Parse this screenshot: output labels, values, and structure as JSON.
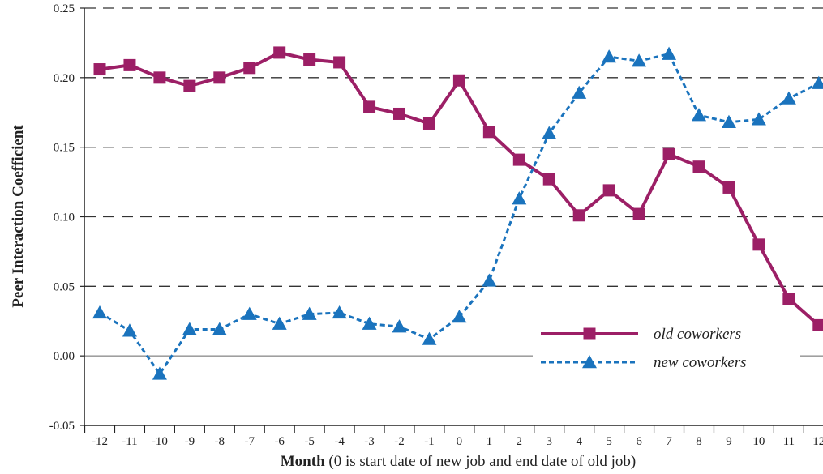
{
  "chart_data": {
    "type": "line",
    "x_categories": [
      "-12",
      "-11",
      "-10",
      "-9",
      "-8",
      "-7",
      "-6",
      "-5",
      "-4",
      "-3",
      "-2",
      "-1",
      "0",
      "1",
      "2",
      "3",
      "4",
      "5",
      "6",
      "7",
      "8",
      "9",
      "10",
      "11",
      "12"
    ],
    "ylabel": "Peer Interaction Coefficient",
    "xlabel_bold": "Month",
    "xlabel_rest": " (0 is start date of new job and end date of old job)",
    "ylim": [
      -0.05,
      0.25
    ],
    "yticks": [
      "0.25",
      "0.20",
      "0.15",
      "0.10",
      "0.05",
      "0.00",
      "-0.05"
    ],
    "ytick_values": [
      0.25,
      0.2,
      0.15,
      0.1,
      0.05,
      0.0,
      -0.05
    ],
    "grid": "dashed horizontal",
    "legend_position": "lower-right",
    "series": [
      {
        "name": "old coworkers",
        "color": "#9c1f66",
        "line_style": "solid",
        "marker": "square",
        "values": [
          0.206,
          0.209,
          0.2,
          0.194,
          0.2,
          0.207,
          0.218,
          0.213,
          0.211,
          0.179,
          0.174,
          0.167,
          0.198,
          0.161,
          0.141,
          0.127,
          0.101,
          0.119,
          0.102,
          0.145,
          0.136,
          0.121,
          0.08,
          0.041,
          0.022
        ]
      },
      {
        "name": "new coworkers",
        "color": "#1a73bd",
        "line_style": "dashed",
        "marker": "triangle",
        "values": [
          0.031,
          0.018,
          -0.013,
          0.019,
          0.019,
          0.03,
          0.023,
          0.03,
          0.031,
          0.023,
          0.021,
          0.012,
          0.028,
          0.054,
          0.113,
          0.16,
          0.189,
          0.215,
          0.212,
          0.217,
          0.173,
          0.168,
          0.17,
          0.185,
          0.196
        ]
      }
    ]
  }
}
